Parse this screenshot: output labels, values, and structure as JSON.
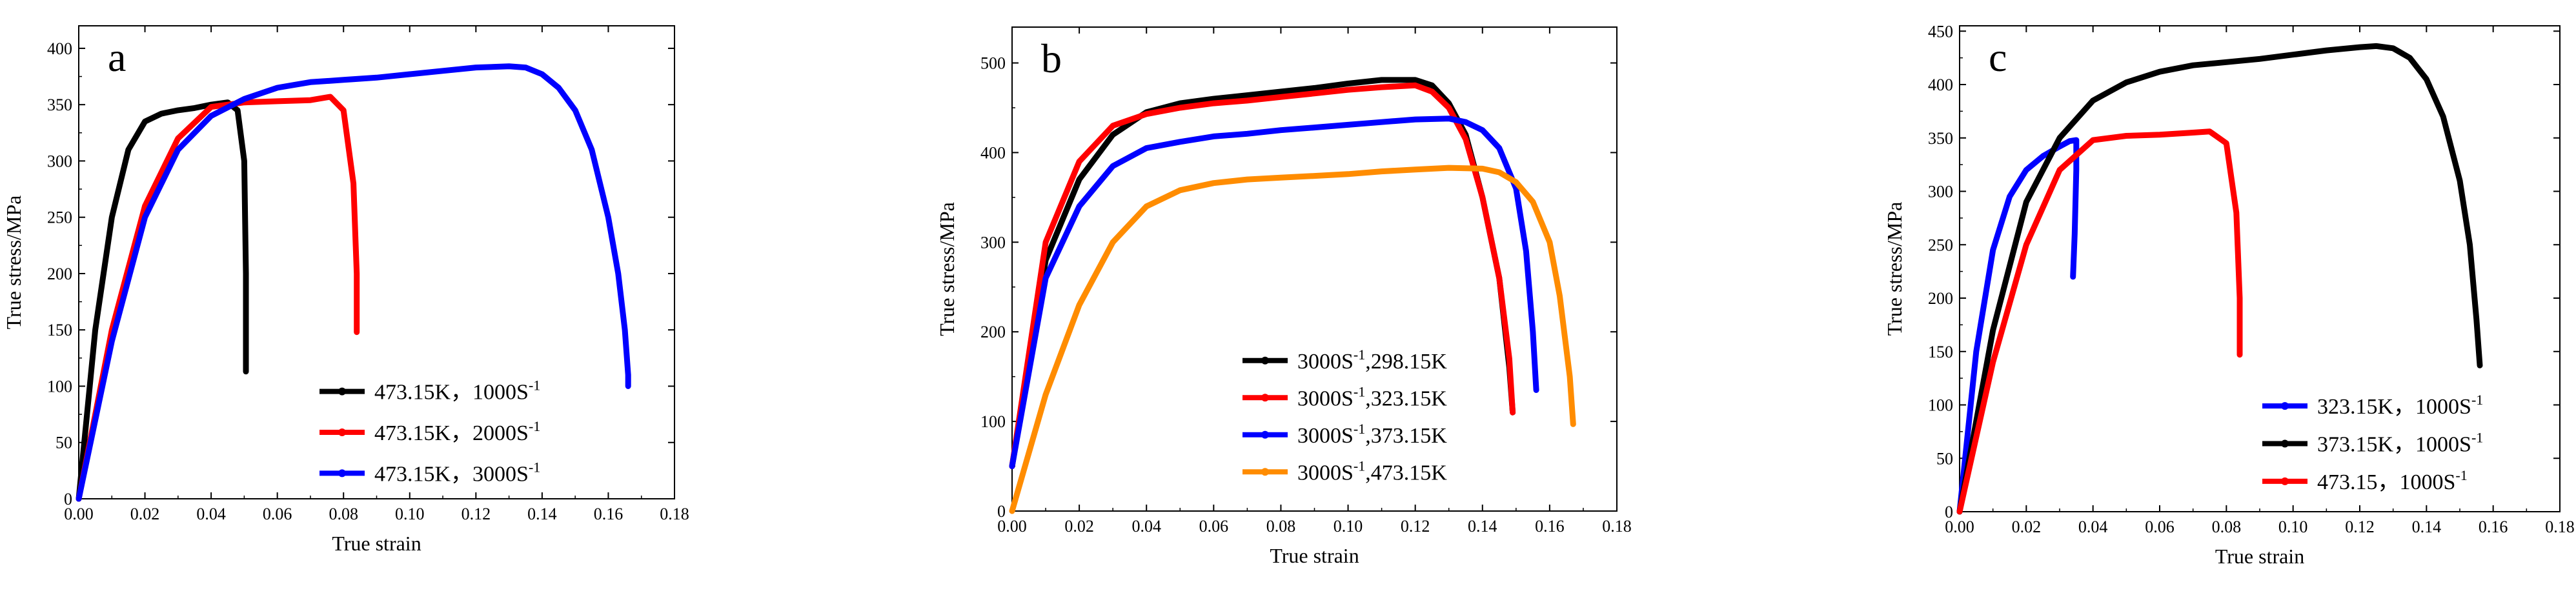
{
  "chart_data": [
    {
      "type": "line",
      "panel_label": "a",
      "xlabel": "True strain",
      "ylabel": "True stress/MPa",
      "xlim": [
        0,
        0.18
      ],
      "ylim": [
        0,
        420
      ],
      "xticks": [
        0.0,
        0.02,
        0.04,
        0.06,
        0.08,
        0.1,
        0.12,
        0.14,
        0.16,
        0.18
      ],
      "xtick_labels": [
        "0.00",
        "0.02",
        "0.04",
        "0.06",
        "0.08",
        "0.10",
        "0.12",
        "0.14",
        "0.16",
        "0.18"
      ],
      "yticks": [
        0,
        50,
        100,
        150,
        200,
        250,
        300,
        350,
        400
      ],
      "ytick_labels": [
        "0",
        "50",
        "100",
        "150",
        "200",
        "250",
        "300",
        "350",
        "400"
      ],
      "legend_position": "lower-right",
      "series": [
        {
          "name_main": "473.15K，1000S",
          "name_sup": "-1",
          "color": "#000000",
          "x": [
            0,
            0.005,
            0.01,
            0.015,
            0.02,
            0.025,
            0.03,
            0.035,
            0.04,
            0.045,
            0.048,
            0.05,
            0.0505,
            0.0505
          ],
          "y": [
            0,
            150,
            250,
            310,
            335,
            342,
            345,
            347,
            350,
            352,
            345,
            300,
            200,
            113
          ]
        },
        {
          "name_main": "473.15K，2000S",
          "name_sup": "-1",
          "color": "#ff0000",
          "x": [
            0,
            0.01,
            0.02,
            0.03,
            0.04,
            0.05,
            0.06,
            0.07,
            0.076,
            0.08,
            0.083,
            0.084,
            0.084
          ],
          "y": [
            0,
            150,
            260,
            320,
            348,
            352,
            353,
            354,
            357,
            345,
            280,
            200,
            148
          ]
        },
        {
          "name_main": "473.15K，3000S",
          "name_sup": "-1",
          "color": "#0000ff",
          "x": [
            0,
            0.01,
            0.02,
            0.03,
            0.04,
            0.05,
            0.06,
            0.07,
            0.08,
            0.09,
            0.1,
            0.11,
            0.12,
            0.13,
            0.135,
            0.14,
            0.145,
            0.15,
            0.155,
            0.16,
            0.163,
            0.165,
            0.166,
            0.166
          ],
          "y": [
            0,
            140,
            250,
            310,
            340,
            355,
            365,
            370,
            372,
            374,
            377,
            380,
            383,
            384,
            383,
            377,
            365,
            345,
            310,
            250,
            200,
            150,
            110,
            100
          ]
        }
      ]
    },
    {
      "type": "line",
      "panel_label": "b",
      "xlabel": "True strain",
      "ylabel": "True stress/MPa",
      "xlim": [
        0,
        0.18
      ],
      "ylim": [
        0,
        540
      ],
      "xticks": [
        0.0,
        0.02,
        0.04,
        0.06,
        0.08,
        0.1,
        0.12,
        0.14,
        0.16,
        0.18
      ],
      "xtick_labels": [
        "0.00",
        "0.02",
        "0.04",
        "0.06",
        "0.08",
        "0.10",
        "0.12",
        "0.14",
        "0.16",
        "0.18"
      ],
      "yticks": [
        0,
        100,
        200,
        300,
        400,
        500
      ],
      "ytick_labels": [
        "0",
        "100",
        "200",
        "300",
        "400",
        "500"
      ],
      "legend_position": "lower-right",
      "series": [
        {
          "name_main": "3000S",
          "name_sup": "-1",
          "name_tail": ",298.15K",
          "color": "#000000",
          "x": [
            0,
            0.01,
            0.02,
            0.03,
            0.04,
            0.05,
            0.06,
            0.07,
            0.08,
            0.09,
            0.1,
            0.11,
            0.12,
            0.125,
            0.13,
            0.135,
            0.14,
            0.145,
            0.148,
            0.149
          ],
          "y": [
            50,
            280,
            370,
            420,
            445,
            455,
            460,
            464,
            468,
            472,
            477,
            481,
            481,
            475,
            455,
            420,
            350,
            260,
            160,
            110
          ]
        },
        {
          "name_main": "3000S",
          "name_sup": "-1",
          "name_tail": ",323.15K",
          "color": "#ff0000",
          "x": [
            0,
            0.01,
            0.02,
            0.03,
            0.04,
            0.05,
            0.06,
            0.07,
            0.08,
            0.09,
            0.1,
            0.11,
            0.12,
            0.125,
            0.13,
            0.135,
            0.14,
            0.145,
            0.148,
            0.149
          ],
          "y": [
            50,
            300,
            390,
            430,
            443,
            450,
            455,
            458,
            462,
            466,
            470,
            473,
            475,
            468,
            450,
            415,
            350,
            260,
            170,
            110
          ]
        },
        {
          "name_main": "3000S",
          "name_sup": "-1",
          "name_tail": ",373.15K",
          "color": "#0000ff",
          "x": [
            0,
            0.01,
            0.02,
            0.03,
            0.04,
            0.05,
            0.06,
            0.07,
            0.08,
            0.09,
            0.1,
            0.11,
            0.12,
            0.13,
            0.135,
            0.14,
            0.145,
            0.15,
            0.153,
            0.155,
            0.156
          ],
          "y": [
            50,
            260,
            340,
            385,
            405,
            412,
            418,
            421,
            425,
            428,
            431,
            434,
            437,
            438,
            434,
            425,
            405,
            360,
            290,
            200,
            135
          ]
        },
        {
          "name_main": "3000S",
          "name_sup": "-1",
          "name_tail": ",473.15K",
          "color": "#ff8c00",
          "x": [
            0,
            0.01,
            0.02,
            0.03,
            0.04,
            0.05,
            0.06,
            0.07,
            0.08,
            0.09,
            0.1,
            0.11,
            0.12,
            0.13,
            0.14,
            0.145,
            0.15,
            0.155,
            0.16,
            0.163,
            0.166,
            0.167
          ],
          "y": [
            0,
            130,
            230,
            300,
            340,
            358,
            366,
            370,
            372,
            374,
            376,
            379,
            381,
            383,
            382,
            378,
            367,
            345,
            300,
            240,
            150,
            97
          ]
        }
      ]
    },
    {
      "type": "line",
      "panel_label": "c",
      "xlabel": "True strain",
      "ylabel": "True stress/MPa",
      "xlim": [
        0,
        0.18
      ],
      "ylim": [
        0,
        455
      ],
      "xticks": [
        0.0,
        0.02,
        0.04,
        0.06,
        0.08,
        0.1,
        0.12,
        0.14,
        0.16,
        0.18
      ],
      "xtick_labels": [
        "0.00",
        "0.02",
        "0.04",
        "0.06",
        "0.08",
        "0.10",
        "0.12",
        "0.14",
        "0.16",
        "0.18"
      ],
      "yticks": [
        0,
        50,
        100,
        150,
        200,
        250,
        300,
        350,
        400,
        450
      ],
      "ytick_labels": [
        "0",
        "50",
        "100",
        "150",
        "200",
        "250",
        "300",
        "350",
        "400",
        "450"
      ],
      "legend_position": "lower-right",
      "series": [
        {
          "name_main": "323.15K，1000S",
          "name_sup": "-1",
          "color": "#0000ff",
          "x": [
            0,
            0.005,
            0.01,
            0.015,
            0.02,
            0.025,
            0.03,
            0.033,
            0.035,
            0.035,
            0.0345,
            0.034
          ],
          "y": [
            0,
            150,
            245,
            295,
            320,
            333,
            342,
            347,
            348,
            320,
            260,
            220
          ]
        },
        {
          "name_main": "373.15K，1000S",
          "name_sup": "-1",
          "color": "#000000",
          "x": [
            0,
            0.01,
            0.02,
            0.03,
            0.04,
            0.05,
            0.06,
            0.07,
            0.08,
            0.09,
            0.1,
            0.11,
            0.12,
            0.125,
            0.13,
            0.135,
            0.14,
            0.145,
            0.15,
            0.153,
            0.155,
            0.156
          ],
          "y": [
            0,
            170,
            290,
            350,
            385,
            402,
            412,
            418,
            421,
            424,
            428,
            432,
            435,
            436,
            434,
            425,
            405,
            370,
            310,
            250,
            180,
            137
          ]
        },
        {
          "name_main": "473.15，1000S",
          "name_sup": "-1",
          "color": "#ff0000",
          "x": [
            0,
            0.01,
            0.02,
            0.03,
            0.04,
            0.05,
            0.06,
            0.07,
            0.075,
            0.08,
            0.083,
            0.084,
            0.084
          ],
          "y": [
            0,
            140,
            250,
            320,
            348,
            352,
            353,
            355,
            356,
            345,
            280,
            200,
            147
          ]
        }
      ]
    }
  ]
}
